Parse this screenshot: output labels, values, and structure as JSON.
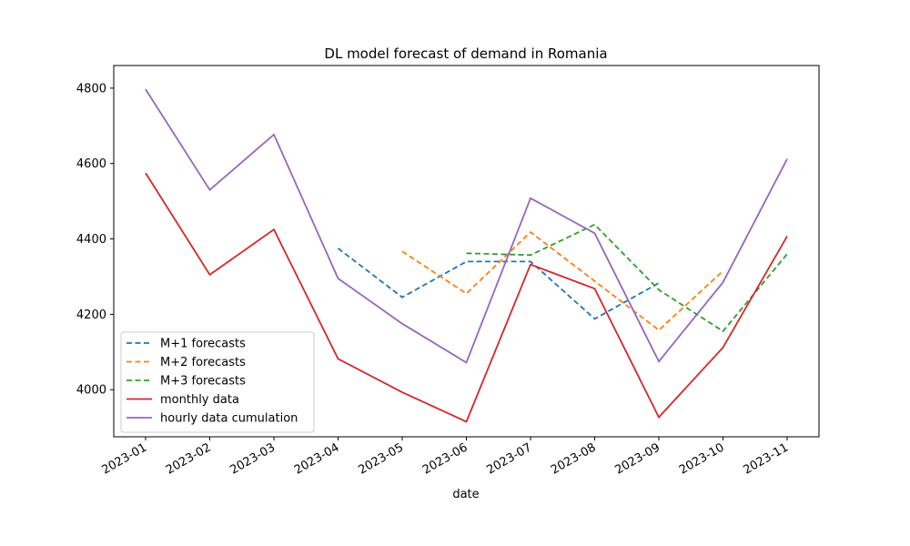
{
  "chart_data": {
    "type": "line",
    "title": "DL model forecast of demand in Romania",
    "xlabel": "date",
    "ylabel": "",
    "categories": [
      "2023-01",
      "2023-02",
      "2023-03",
      "2023-04",
      "2023-05",
      "2023-06",
      "2023-07",
      "2023-08",
      "2023-09",
      "2023-10",
      "2023-11"
    ],
    "ylim": [
      3875,
      4860
    ],
    "yticks": [
      4000,
      4200,
      4400,
      4600,
      4800
    ],
    "grid": false,
    "legend_position": "lower-left",
    "series": [
      {
        "name": "M+1 forecasts",
        "color": "#1f77b4",
        "style": "dashed",
        "values": [
          null,
          null,
          null,
          4375,
          4245,
          4340,
          4340,
          4188,
          4283,
          null,
          null
        ]
      },
      {
        "name": "M+2 forecasts",
        "color": "#ff7f0e",
        "style": "dashed",
        "values": [
          null,
          null,
          null,
          null,
          4367,
          4255,
          4418,
          4288,
          4158,
          4315,
          null
        ]
      },
      {
        "name": "M+3 forecasts",
        "color": "#2ca02c",
        "style": "dashed",
        "values": [
          null,
          null,
          null,
          null,
          null,
          4362,
          4357,
          4438,
          4265,
          4155,
          4360
        ]
      },
      {
        "name": "monthly data",
        "color": "#d62728",
        "style": "solid",
        "values": [
          4575,
          4305,
          4425,
          4082,
          3993,
          3915,
          4332,
          4268,
          3927,
          4112,
          4407
        ]
      },
      {
        "name": "hourly data cumulation",
        "color": "#9467bd",
        "style": "solid",
        "values": [
          4797,
          4530,
          4677,
          4295,
          4175,
          4072,
          4508,
          4415,
          4075,
          4285,
          4612
        ]
      }
    ]
  }
}
